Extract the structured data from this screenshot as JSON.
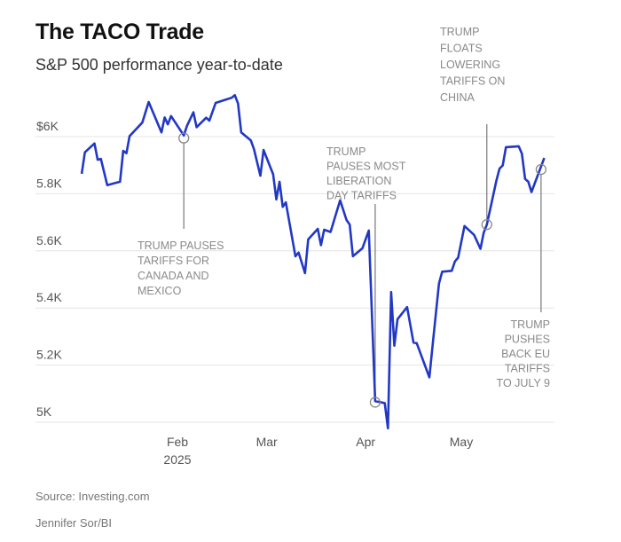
{
  "chart_data": {
    "type": "line",
    "title": "The TACO Trade",
    "subtitle": "S&P 500 performance year-to-date",
    "xlabel": "",
    "ylabel": "",
    "y_ticks": [
      {
        "value": 5000,
        "label": "5K"
      },
      {
        "value": 5200,
        "label": "5.2K"
      },
      {
        "value": 5400,
        "label": "5.4K"
      },
      {
        "value": 5600,
        "label": "5.6K"
      },
      {
        "value": 5800,
        "label": "5.8K"
      },
      {
        "value": 6000,
        "label": "$6K"
      }
    ],
    "x_ticks": [
      {
        "date": "2025-02-01",
        "label": "Feb",
        "sublabel": "2025"
      },
      {
        "date": "2025-03-01",
        "label": "Mar"
      },
      {
        "date": "2025-04-01",
        "label": "Apr"
      },
      {
        "date": "2025-05-01",
        "label": "May"
      }
    ],
    "ylim": [
      4950,
      6200
    ],
    "xlim": [
      "2025-01-01",
      "2025-05-31"
    ],
    "grid": true,
    "line_color": "#2238c4",
    "series": [
      {
        "x": [
          "2025-01-02",
          "2025-01-03",
          "2025-01-06",
          "2025-01-07",
          "2025-01-08",
          "2025-01-10",
          "2025-01-14",
          "2025-01-15",
          "2025-01-16",
          "2025-01-17",
          "2025-01-21",
          "2025-01-23",
          "2025-01-27",
          "2025-01-28",
          "2025-01-29",
          "2025-01-30",
          "2025-02-03",
          "2025-02-04",
          "2025-02-06",
          "2025-02-07",
          "2025-02-10",
          "2025-02-11",
          "2025-02-13",
          "2025-02-18",
          "2025-02-19",
          "2025-02-20",
          "2025-02-21",
          "2025-02-24",
          "2025-02-25",
          "2025-02-27",
          "2025-02-28",
          "2025-03-03",
          "2025-03-04",
          "2025-03-05",
          "2025-03-06",
          "2025-03-07",
          "2025-03-10",
          "2025-03-11",
          "2025-03-13",
          "2025-03-14",
          "2025-03-17",
          "2025-03-18",
          "2025-03-19",
          "2025-03-21",
          "2025-03-24",
          "2025-03-26",
          "2025-03-27",
          "2025-03-28",
          "2025-03-31",
          "2025-04-02",
          "2025-04-04",
          "2025-04-07",
          "2025-04-08",
          "2025-04-09",
          "2025-04-10",
          "2025-04-11",
          "2025-04-14",
          "2025-04-16",
          "2025-04-17",
          "2025-04-21",
          "2025-04-22",
          "2025-04-24",
          "2025-04-25",
          "2025-04-28",
          "2025-04-29",
          "2025-04-30",
          "2025-05-02",
          "2025-05-05",
          "2025-05-07",
          "2025-05-08",
          "2025-05-09",
          "2025-05-12",
          "2025-05-13",
          "2025-05-14",
          "2025-05-15",
          "2025-05-19",
          "2025-05-20",
          "2025-05-21",
          "2025-05-22",
          "2025-05-23",
          "2025-05-27"
        ],
        "y": [
          5870,
          5945,
          5976,
          5919,
          5922,
          5830,
          5842,
          5950,
          5942,
          6002,
          6049,
          6121,
          6015,
          6067,
          6043,
          6072,
          6004,
          6038,
          6085,
          6033,
          6066,
          6056,
          6118,
          6136,
          6145,
          6116,
          6015,
          5987,
          5956,
          5863,
          5953,
          5868,
          5780,
          5842,
          5754,
          5770,
          5581,
          5594,
          5522,
          5640,
          5677,
          5620,
          5674,
          5666,
          5777,
          5708,
          5692,
          5581,
          5609,
          5671,
          5074,
          5067,
          4979,
          5456,
          5268,
          5361,
          5403,
          5279,
          5277,
          5157,
          5268,
          5485,
          5527,
          5530,
          5563,
          5576,
          5687,
          5656,
          5607,
          5663,
          5692,
          5847,
          5888,
          5899,
          5963,
          5966,
          5940,
          5852,
          5842,
          5806,
          5925
        ]
      }
    ],
    "annotations": [
      {
        "date": "2025-02-03",
        "value": 5995,
        "lines": [
          "TRUMP PAUSES",
          "TARIFFS FOR",
          "CANADA AND",
          "MEXICO"
        ]
      },
      {
        "date": "2025-04-04",
        "value": 5070,
        "lines": [
          "TRUMP",
          "PAUSES MOST",
          "LIBERATION",
          "DAY TARIFFS"
        ]
      },
      {
        "date": "2025-05-09",
        "value": 5692,
        "lines": [
          "TRUMP",
          "FLOATS",
          "LOWERING",
          "TARIFFS ON",
          "CHINA"
        ]
      },
      {
        "date": "2025-05-26",
        "value": 5885,
        "lines": [
          "TRUMP",
          "PUSHES",
          "BACK EU",
          "TARIFFS",
          "TO JULY 9"
        ]
      }
    ]
  },
  "footer": {
    "source": "Source: Investing.com",
    "credit": "Jennifer Sor/BI"
  }
}
